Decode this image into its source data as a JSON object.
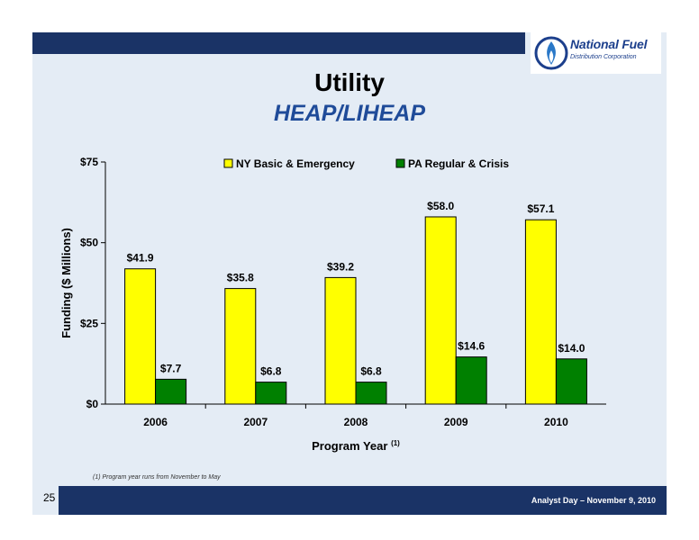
{
  "brand": {
    "name": "National Fuel",
    "tagline": "Distribution Corporation",
    "navy": "#1a3366",
    "blue": "#1f4b99"
  },
  "slide": {
    "title": "Utility",
    "subtitle": "HEAP/LIHEAP",
    "footnote": "(1)    Program year runs from November to May",
    "page_number": "25",
    "footer_text": "Analyst Day – November 9, 2010"
  },
  "chart_data": {
    "type": "bar",
    "categories": [
      "2006",
      "2007",
      "2008",
      "2009",
      "2010"
    ],
    "series": [
      {
        "name": "NY Basic & Emergency",
        "color": "#ffff00",
        "values": [
          41.9,
          35.8,
          39.2,
          58.0,
          57.1
        ],
        "labels": [
          "$41.9",
          "$35.8",
          "$39.2",
          "$58.0",
          "$57.1"
        ]
      },
      {
        "name": "PA Regular & Crisis",
        "color": "#008000",
        "values": [
          7.7,
          6.8,
          6.8,
          14.6,
          14.0
        ],
        "labels": [
          "$7.7",
          "$6.8",
          "$6.8",
          "$14.6",
          "$14.0"
        ]
      }
    ],
    "ylabel": "Funding ($ Millions)",
    "xlabel": "Program Year",
    "xlabel_note": "(1)",
    "ylim": [
      0,
      75
    ],
    "yticks": [
      0,
      25,
      50,
      75
    ],
    "ytick_labels": [
      "$0",
      "$25",
      "$50",
      "$75"
    ],
    "legend_position": "top",
    "grid": false
  }
}
